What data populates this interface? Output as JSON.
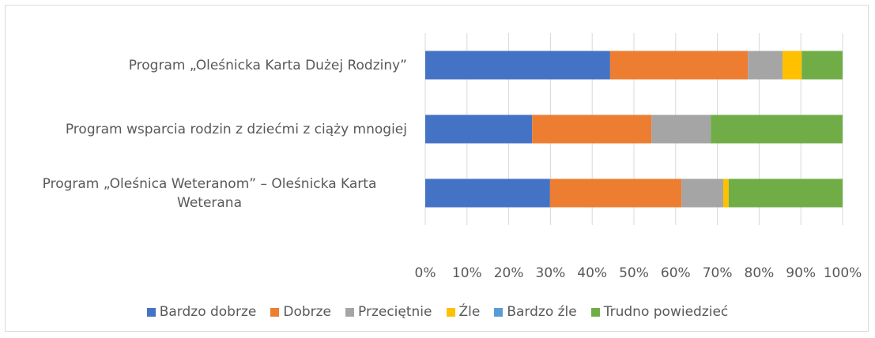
{
  "chart_data": {
    "type": "stacked_barh",
    "categories": [
      "Program „Oleśnicka Karta Dużej Rodziny”",
      "Program wsparcia rodzin z dziećmi z ciąży mnogiej",
      "Program „Oleśnica Weteranom” – Oleśnicka Karta Weterana"
    ],
    "series": [
      {
        "name": "Bardzo dobrze",
        "color": "#4472c4",
        "values": [
          44.3,
          25.6,
          29.9
        ]
      },
      {
        "name": "Dobrze",
        "color": "#ed7d31",
        "values": [
          33.0,
          28.6,
          31.5
        ]
      },
      {
        "name": "Przeciętnie",
        "color": "#a5a5a5",
        "values": [
          8.3,
          14.2,
          10.0
        ]
      },
      {
        "name": "Źle",
        "color": "#ffc000",
        "values": [
          4.6,
          0,
          1.3
        ]
      },
      {
        "name": "Bardzo źle",
        "color": "#5b9bd5",
        "values": [
          0,
          0,
          0
        ]
      },
      {
        "name": "Trudno powiedzieć",
        "color": "#70ad47",
        "values": [
          9.8,
          31.6,
          27.3
        ]
      }
    ],
    "xlim": [
      0,
      100
    ],
    "xticks": [
      {
        "value": 0,
        "label": "0%"
      },
      {
        "value": 10,
        "label": "10%"
      },
      {
        "value": 20,
        "label": "20%"
      },
      {
        "value": 30,
        "label": "30%"
      },
      {
        "value": 40,
        "label": "40%"
      },
      {
        "value": 50,
        "label": "50%"
      },
      {
        "value": 60,
        "label": "60%"
      },
      {
        "value": 70,
        "label": "70%"
      },
      {
        "value": 80,
        "label": "80%"
      },
      {
        "value": 90,
        "label": "90%"
      },
      {
        "value": 100,
        "label": "100%"
      }
    ],
    "grid": true,
    "legend": "bottom"
  }
}
